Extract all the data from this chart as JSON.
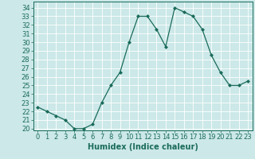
{
  "x": [
    0,
    1,
    2,
    3,
    4,
    5,
    6,
    7,
    8,
    9,
    10,
    11,
    12,
    13,
    14,
    15,
    16,
    17,
    18,
    19,
    20,
    21,
    22,
    23
  ],
  "y": [
    22.5,
    22.0,
    21.5,
    21.0,
    20.0,
    20.0,
    20.5,
    23.0,
    25.0,
    26.5,
    30.0,
    33.0,
    33.0,
    31.5,
    29.5,
    34.0,
    33.5,
    33.0,
    31.5,
    28.5,
    26.5,
    25.0,
    25.0,
    25.5
  ],
  "line_color": "#1a6b5a",
  "marker": "D",
  "marker_size": 2,
  "bg_color": "#cce8e8",
  "grid_color": "#b0d8d8",
  "xlabel": "Humidex (Indice chaleur)",
  "ylabel_ticks": [
    20,
    21,
    22,
    23,
    24,
    25,
    26,
    27,
    28,
    29,
    30,
    31,
    32,
    33,
    34
  ],
  "ylim": [
    19.8,
    34.7
  ],
  "xlim": [
    -0.5,
    23.5
  ],
  "xlabel_fontsize": 7,
  "tick_fontsize": 6
}
